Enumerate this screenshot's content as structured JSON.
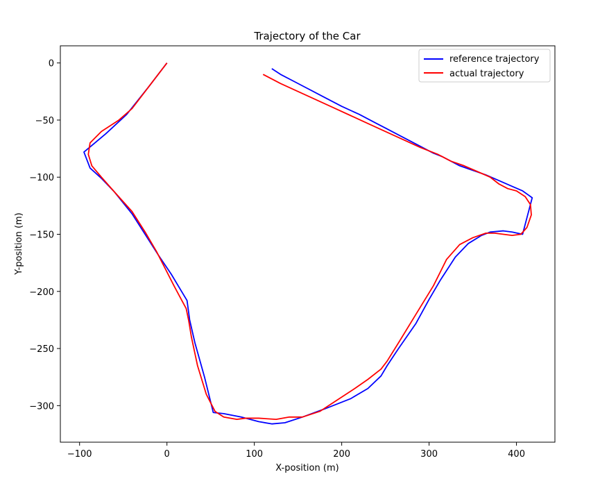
{
  "chart_data": {
    "type": "line",
    "title": "Trajectory of the Car",
    "xlabel": "X-position (m)",
    "ylabel": "Y-position (m)",
    "xlim": [
      -122,
      444
    ],
    "ylim": [
      -332,
      15
    ],
    "xticks": [
      -100,
      0,
      100,
      200,
      300,
      400
    ],
    "yticks": [
      0,
      -50,
      -100,
      -150,
      -200,
      -250,
      -300
    ],
    "x_tick_labels": [
      "−100",
      "0",
      "100",
      "200",
      "300",
      "400"
    ],
    "y_tick_labels": [
      "0",
      "−50",
      "−100",
      "−150",
      "−200",
      "−250",
      "−300"
    ],
    "grid": false,
    "legend_position": "top-right",
    "series": [
      {
        "name": "reference trajectory",
        "color": "#0000ff",
        "x": [
          0,
          -20,
          -46,
          -70,
          -95,
          -88,
          -75,
          -60,
          -40,
          -25,
          -10,
          5,
          23,
          26,
          32,
          43,
          53,
          65,
          85,
          105,
          120,
          135,
          155,
          180,
          210,
          230,
          245,
          252,
          265,
          285,
          300,
          313,
          330,
          345,
          360,
          370,
          385,
          395,
          407,
          418,
          407,
          395,
          380,
          365,
          350,
          335,
          325,
          315,
          305,
          300,
          290,
          275,
          260,
          250,
          240,
          230,
          220,
          200,
          180,
          160,
          145,
          130,
          120
        ],
        "y": [
          0,
          -20,
          -45,
          -62,
          -78,
          -92,
          -101,
          -113,
          -132,
          -150,
          -168,
          -185,
          -208,
          -225,
          -245,
          -275,
          -306,
          -307,
          -310,
          -314,
          -316,
          -315,
          -310,
          -303,
          -294,
          -285,
          -274,
          -265,
          -250,
          -228,
          -207,
          -190,
          -170,
          -158,
          -151,
          -148,
          -147,
          -148,
          -150,
          -118,
          -112,
          -108,
          -103,
          -98,
          -94,
          -90,
          -86,
          -82,
          -79,
          -77,
          -73,
          -67,
          -61,
          -57,
          -53,
          -49,
          -45,
          -38,
          -30,
          -22,
          -16,
          -10,
          -5
        ]
      },
      {
        "name": "actual trajectory",
        "color": "#ff0000",
        "x": [
          0,
          -20,
          -40,
          -55,
          -75,
          -88,
          -90,
          -86,
          -75,
          -60,
          -40,
          -25,
          -12,
          -2,
          8,
          15,
          22,
          25,
          28,
          35,
          45,
          55,
          65,
          80,
          90,
          105,
          125,
          140,
          155,
          175,
          195,
          215,
          230,
          245,
          252,
          265,
          285,
          305,
          320,
          335,
          350,
          365,
          375,
          385,
          395,
          405,
          412,
          417,
          416,
          410,
          400,
          390,
          380,
          370,
          355,
          340,
          325,
          310,
          290,
          270,
          250,
          230,
          210,
          190,
          170,
          150,
          130,
          110
        ],
        "y": [
          0,
          -20,
          -40,
          -50,
          -60,
          -70,
          -80,
          -90,
          -100,
          -113,
          -130,
          -148,
          -165,
          -180,
          -195,
          -205,
          -215,
          -226,
          -240,
          -265,
          -290,
          -305,
          -310,
          -312,
          -311,
          -311,
          -312,
          -310,
          -310,
          -305,
          -295,
          -285,
          -277,
          -268,
          -261,
          -245,
          -220,
          -195,
          -172,
          -159,
          -153,
          -149,
          -149,
          -150,
          -151,
          -150,
          -144,
          -133,
          -124,
          -117,
          -112,
          -110,
          -106,
          -100,
          -95,
          -90,
          -86,
          -80,
          -74,
          -67,
          -60,
          -53,
          -46,
          -39,
          -32,
          -25,
          -18,
          -10
        ]
      }
    ]
  }
}
